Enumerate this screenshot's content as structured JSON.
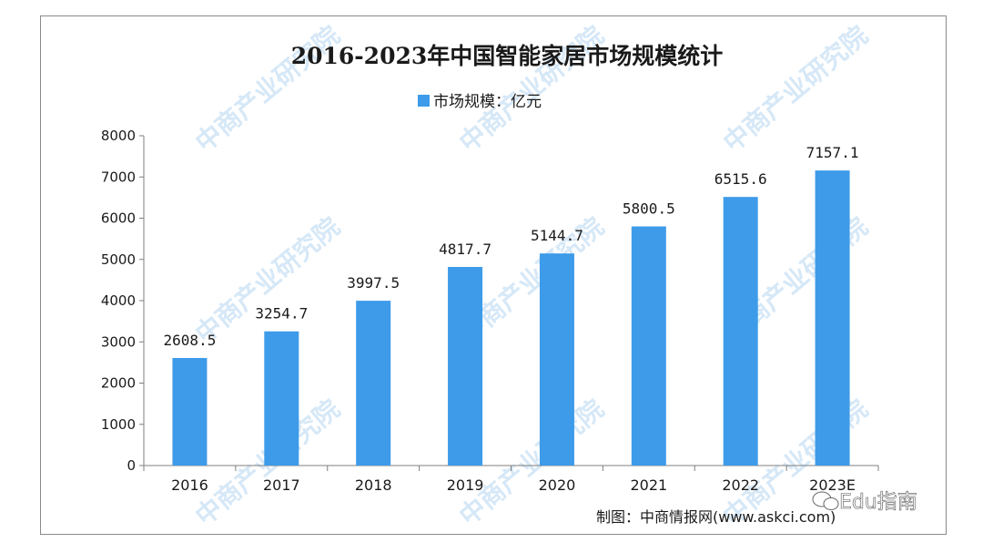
{
  "watermark": "中商产业研究院",
  "source_note": "制图：中商情报网(www.askci.com)",
  "overlay_badge": "Edu指南",
  "colors": {
    "bar": "#3d9be9",
    "axis": "#7f7f7f",
    "watermark": "#d6e8f7"
  },
  "chart_data": {
    "type": "bar",
    "title": "2016-2023年中国智能家居市场规模统计",
    "categories": [
      "2016",
      "2017",
      "2018",
      "2019",
      "2020",
      "2021",
      "2022",
      "2023E"
    ],
    "series": [
      {
        "name": "市场规模：亿元",
        "values": [
          2608.5,
          3254.7,
          3997.5,
          4817.7,
          5144.7,
          5800.5,
          6515.6,
          7157.1
        ],
        "labels": [
          "2608.5",
          "3254.7",
          "3997.5",
          "4817.7",
          "5144.7",
          "5800.5",
          "6515.6",
          "7157.1"
        ]
      }
    ],
    "ylim": [
      0,
      8000
    ],
    "yticks": [
      0,
      1000,
      2000,
      3000,
      4000,
      5000,
      6000,
      7000,
      8000
    ],
    "grid": false,
    "legend_position": "top"
  }
}
